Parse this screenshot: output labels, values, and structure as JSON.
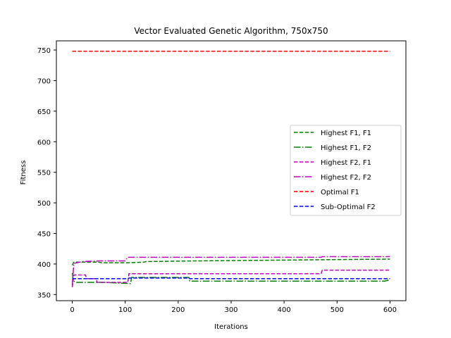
{
  "chart_data": {
    "type": "line",
    "title": "Vector Evaluated Genetic Algorithm, 750x750",
    "xlabel": "Iterations",
    "ylabel": "Fitness",
    "xlim": [
      -30,
      630
    ],
    "ylim": [
      340,
      765
    ],
    "xticks": [
      0,
      100,
      200,
      300,
      400,
      500,
      600
    ],
    "yticks": [
      350,
      400,
      450,
      500,
      550,
      600,
      650,
      700,
      750
    ],
    "grid": false,
    "legend_position": "center-right",
    "series": [
      {
        "name": "Highest F1, F1",
        "color": "#008000",
        "dash": "dashed",
        "points": [
          [
            0,
            398
          ],
          [
            3,
            403
          ],
          [
            50,
            403
          ],
          [
            55,
            402
          ],
          [
            105,
            402
          ],
          [
            135,
            403
          ],
          [
            140,
            404
          ],
          [
            230,
            405
          ],
          [
            600,
            408
          ]
        ]
      },
      {
        "name": "Highest F1, F2",
        "color": "#008000",
        "dash": "dashdot",
        "points": [
          [
            0,
            385
          ],
          [
            2,
            372
          ],
          [
            8,
            370
          ],
          [
            50,
            370
          ],
          [
            60,
            370
          ],
          [
            110,
            368
          ],
          [
            112,
            378
          ],
          [
            220,
            378
          ],
          [
            222,
            372
          ],
          [
            590,
            372
          ],
          [
            600,
            374
          ]
        ]
      },
      {
        "name": "Highest F2, F1",
        "color": "#bf00bf",
        "dash": "dashed",
        "points": [
          [
            0,
            362
          ],
          [
            3,
            382
          ],
          [
            25,
            382
          ],
          [
            27,
            376
          ],
          [
            45,
            376
          ],
          [
            47,
            370
          ],
          [
            105,
            370
          ],
          [
            107,
            384
          ],
          [
            470,
            384
          ],
          [
            472,
            390
          ],
          [
            600,
            390
          ]
        ]
      },
      {
        "name": "Highest F2, F2",
        "color": "#bf00bf",
        "dash": "dashdot",
        "points": [
          [
            0,
            365
          ],
          [
            3,
            401
          ],
          [
            20,
            404
          ],
          [
            50,
            405
          ],
          [
            100,
            405
          ],
          [
            105,
            411
          ],
          [
            470,
            411
          ],
          [
            472,
            412
          ],
          [
            600,
            412
          ]
        ]
      },
      {
        "name": "Optimal F1",
        "color": "#ff0000",
        "dash": "dashed",
        "points": [
          [
            0,
            748
          ],
          [
            600,
            748
          ]
        ]
      },
      {
        "name": "Sub-Optimal F2",
        "color": "#0000ff",
        "dash": "dashed",
        "points": [
          [
            0,
            376
          ],
          [
            105,
            376
          ],
          [
            107,
            377
          ],
          [
            220,
            377
          ],
          [
            222,
            376
          ],
          [
            600,
            376
          ]
        ]
      }
    ]
  }
}
